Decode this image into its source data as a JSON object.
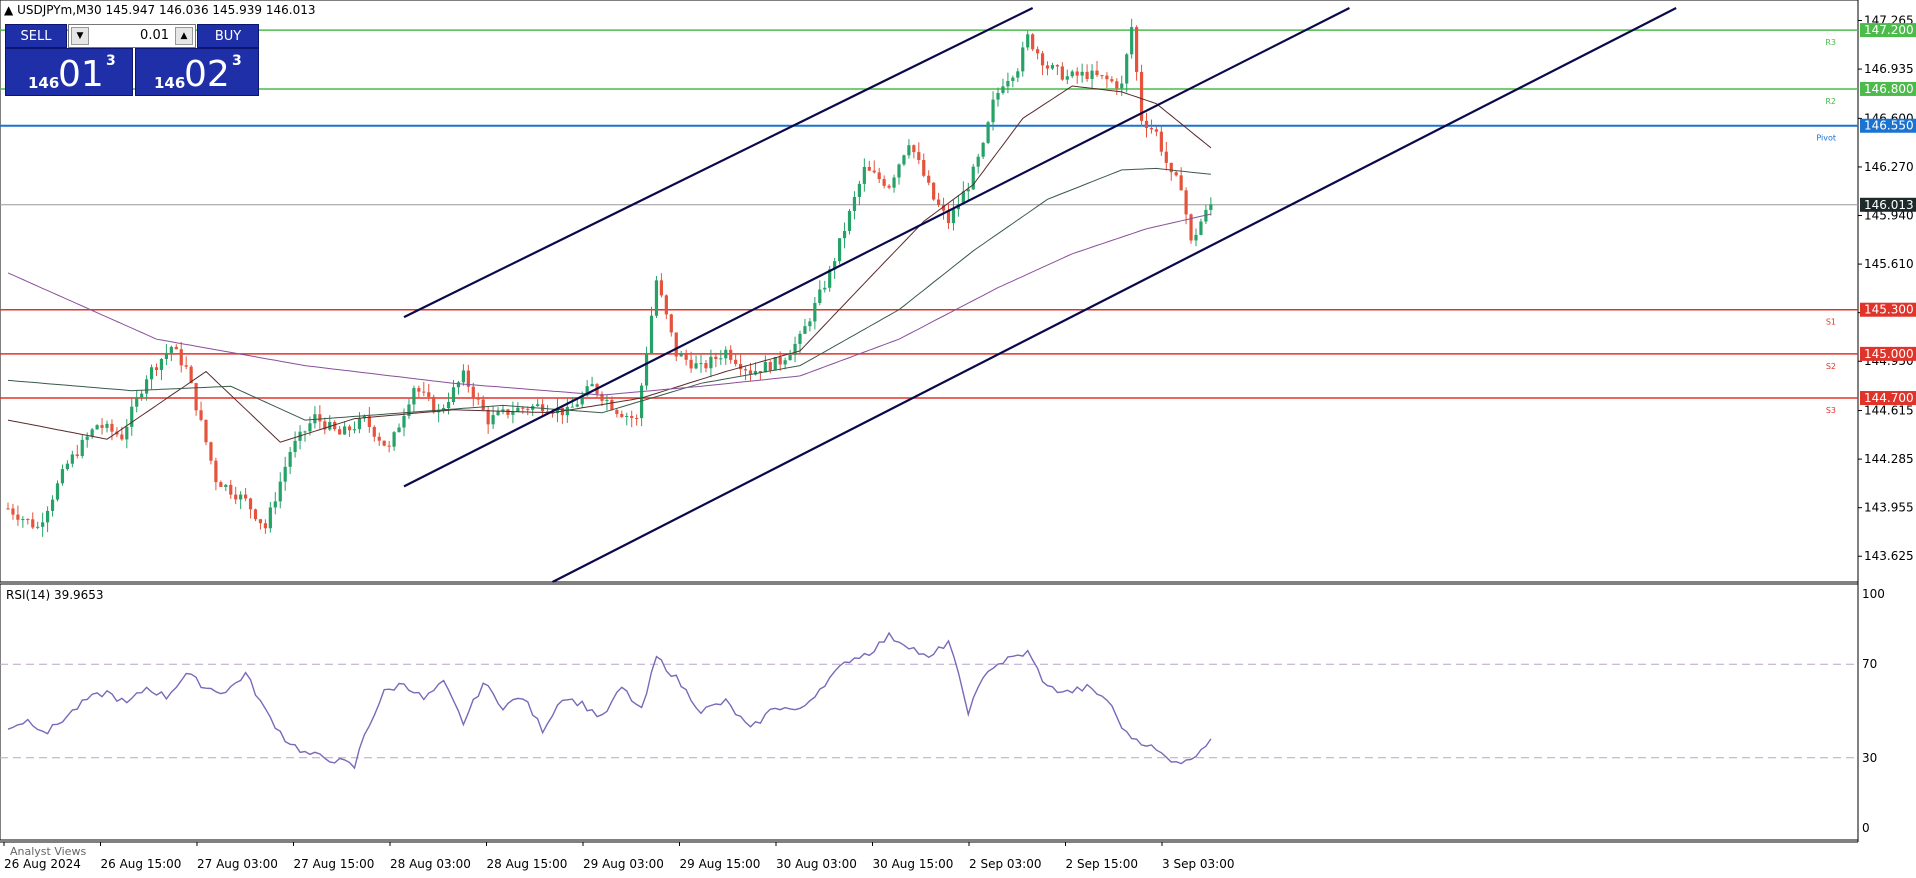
{
  "header": {
    "symbol": "USDJPYm,M30",
    "o": "145.947",
    "h": "146.036",
    "l": "145.939",
    "c": "146.013"
  },
  "trade_panel": {
    "sell_label": "SELL",
    "buy_label": "BUY",
    "lot_value": "0.01",
    "sell_quote": {
      "big": "146",
      "main": "01",
      "sup": "3"
    },
    "buy_quote": {
      "big": "146",
      "main": "02",
      "sup": "3"
    }
  },
  "colors": {
    "bull": "#26a269",
    "bear": "#e5533d",
    "support": "#e0332a",
    "resistance": "#4cbb4c",
    "pivot": "#1a73d1",
    "channel": "#0a0a4a",
    "rsi": "#7b68b8"
  },
  "chart_data": [
    {
      "type": "candlestick",
      "ylim": [
        143.45,
        147.35
      ],
      "price_ticks": [
        "147.265",
        "146.935",
        "146.600",
        "146.270",
        "145.940",
        "145.610",
        "145.280",
        "144.950",
        "144.615",
        "144.285",
        "143.955",
        "143.625"
      ],
      "x_tick_labels": [
        "26 Aug 2024",
        "26 Aug 15:00",
        "27 Aug 03:00",
        "27 Aug 15:00",
        "28 Aug 03:00",
        "28 Aug 15:00",
        "29 Aug 03:00",
        "29 Aug 15:00",
        "30 Aug 03:00",
        "30 Aug 15:00",
        "2 Sep 03:00",
        "2 Sep 15:00",
        "3 Sep 03:00"
      ],
      "current_price": "146.013",
      "levels": [
        {
          "name": "R3",
          "price": 147.2,
          "label": "147.200",
          "kind": "resistance"
        },
        {
          "name": "R2",
          "price": 146.8,
          "label": "146.800",
          "kind": "resistance"
        },
        {
          "name": "Pivot",
          "price": 146.55,
          "label": "146.550",
          "kind": "pivot"
        },
        {
          "name": "S1",
          "price": 145.3,
          "label": "145.300",
          "kind": "support"
        },
        {
          "name": "S2",
          "price": 145.0,
          "label": "145.000",
          "kind": "support"
        },
        {
          "name": "S3",
          "price": 144.7,
          "label": "144.700",
          "kind": "support"
        }
      ],
      "close_path": [
        [
          0,
          143.95
        ],
        [
          6,
          143.82
        ],
        [
          12,
          144.25
        ],
        [
          18,
          144.52
        ],
        [
          23,
          144.44
        ],
        [
          28,
          144.85
        ],
        [
          33,
          145.05
        ],
        [
          36,
          144.9
        ],
        [
          42,
          144.15
        ],
        [
          48,
          144.0
        ],
        [
          52,
          143.82
        ],
        [
          57,
          144.34
        ],
        [
          62,
          144.57
        ],
        [
          67,
          144.45
        ],
        [
          72,
          144.55
        ],
        [
          77,
          144.35
        ],
        [
          82,
          144.78
        ],
        [
          87,
          144.6
        ],
        [
          92,
          144.85
        ],
        [
          97,
          144.55
        ],
        [
          102,
          144.62
        ],
        [
          108,
          144.65
        ],
        [
          113,
          144.6
        ],
        [
          118,
          144.78
        ],
        [
          123,
          144.62
        ],
        [
          127,
          144.55
        ],
        [
          131,
          145.5
        ],
        [
          135,
          145.0
        ],
        [
          140,
          144.9
        ],
        [
          145,
          145.02
        ],
        [
          150,
          144.88
        ],
        [
          156,
          144.95
        ],
        [
          160,
          145.1
        ],
        [
          166,
          145.55
        ],
        [
          170,
          145.95
        ],
        [
          173,
          146.25
        ],
        [
          178,
          146.15
        ],
        [
          182,
          146.45
        ],
        [
          187,
          146.05
        ],
        [
          190,
          145.9
        ],
        [
          194,
          146.15
        ],
        [
          197,
          146.4
        ],
        [
          199,
          146.7
        ],
        [
          201,
          146.85
        ],
        [
          204,
          146.95
        ],
        [
          206,
          147.15
        ],
        [
          210,
          146.95
        ],
        [
          214,
          146.88
        ],
        [
          218,
          146.9
        ],
        [
          222,
          146.86
        ],
        [
          225,
          146.82
        ],
        [
          227,
          147.22
        ],
        [
          229,
          146.6
        ],
        [
          232,
          146.5
        ],
        [
          235,
          146.2
        ],
        [
          237,
          146.15
        ],
        [
          239,
          145.75
        ],
        [
          241,
          145.9
        ],
        [
          243,
          146.013
        ]
      ],
      "ma_fast": [
        [
          0,
          144.55
        ],
        [
          20,
          144.42
        ],
        [
          40,
          144.88
        ],
        [
          55,
          144.4
        ],
        [
          70,
          144.56
        ],
        [
          90,
          144.62
        ],
        [
          110,
          144.6
        ],
        [
          128,
          144.7
        ],
        [
          145,
          144.88
        ],
        [
          160,
          145.02
        ],
        [
          175,
          145.55
        ],
        [
          185,
          145.9
        ],
        [
          195,
          146.15
        ],
        [
          205,
          146.6
        ],
        [
          215,
          146.82
        ],
        [
          225,
          146.78
        ],
        [
          232,
          146.7
        ],
        [
          243,
          146.4
        ]
      ],
      "ma_mid": [
        [
          0,
          144.82
        ],
        [
          25,
          144.75
        ],
        [
          45,
          144.78
        ],
        [
          60,
          144.55
        ],
        [
          80,
          144.6
        ],
        [
          100,
          144.65
        ],
        [
          120,
          144.6
        ],
        [
          140,
          144.8
        ],
        [
          160,
          144.92
        ],
        [
          180,
          145.3
        ],
        [
          195,
          145.7
        ],
        [
          210,
          146.05
        ],
        [
          225,
          146.25
        ],
        [
          232,
          146.26
        ],
        [
          243,
          146.22
        ]
      ],
      "ma_slow": [
        [
          0,
          145.55
        ],
        [
          30,
          145.1
        ],
        [
          60,
          144.92
        ],
        [
          90,
          144.8
        ],
        [
          120,
          144.72
        ],
        [
          140,
          144.78
        ],
        [
          160,
          144.85
        ],
        [
          180,
          145.1
        ],
        [
          200,
          145.45
        ],
        [
          215,
          145.68
        ],
        [
          230,
          145.85
        ],
        [
          243,
          145.95
        ]
      ],
      "channel_lines": [
        [
          [
            80,
            145.25
          ],
          [
            207,
            147.35
          ]
        ],
        [
          [
            80,
            144.1
          ],
          [
            271,
            147.35
          ]
        ],
        [
          [
            110,
            143.45
          ],
          [
            337,
            147.35
          ]
        ]
      ]
    },
    {
      "type": "line",
      "name": "RSI(14) 39.9653",
      "ylim": [
        0,
        100
      ],
      "y_ticks": [
        "100",
        "70",
        "30",
        "0"
      ],
      "levels": [
        70,
        30
      ],
      "values": [
        [
          0,
          43
        ],
        [
          4,
          46
        ],
        [
          8,
          41
        ],
        [
          12,
          48
        ],
        [
          16,
          55
        ],
        [
          20,
          58
        ],
        [
          24,
          53
        ],
        [
          28,
          60
        ],
        [
          32,
          56
        ],
        [
          36,
          66
        ],
        [
          40,
          60
        ],
        [
          44,
          58
        ],
        [
          48,
          66
        ],
        [
          52,
          50
        ],
        [
          56,
          38
        ],
        [
          60,
          32
        ],
        [
          64,
          30
        ],
        [
          68,
          28
        ],
        [
          70,
          26
        ],
        [
          72,
          40
        ],
        [
          76,
          58
        ],
        [
          80,
          62
        ],
        [
          84,
          55
        ],
        [
          88,
          62
        ],
        [
          92,
          45
        ],
        [
          96,
          62
        ],
        [
          100,
          52
        ],
        [
          104,
          56
        ],
        [
          108,
          42
        ],
        [
          112,
          56
        ],
        [
          116,
          53
        ],
        [
          120,
          47
        ],
        [
          124,
          60
        ],
        [
          128,
          50
        ],
        [
          131,
          73
        ],
        [
          135,
          64
        ],
        [
          140,
          50
        ],
        [
          145,
          54
        ],
        [
          150,
          42
        ],
        [
          155,
          52
        ],
        [
          160,
          50
        ],
        [
          165,
          62
        ],
        [
          170,
          72
        ],
        [
          174,
          75
        ],
        [
          178,
          82
        ],
        [
          182,
          78
        ],
        [
          186,
          72
        ],
        [
          190,
          80
        ],
        [
          194,
          50
        ],
        [
          198,
          68
        ],
        [
          202,
          72
        ],
        [
          206,
          75
        ],
        [
          210,
          60
        ],
        [
          214,
          58
        ],
        [
          218,
          60
        ],
        [
          222,
          55
        ],
        [
          226,
          40
        ],
        [
          230,
          36
        ],
        [
          234,
          30
        ],
        [
          238,
          28
        ],
        [
          240,
          32
        ],
        [
          243,
          38
        ]
      ]
    }
  ],
  "rsi_label": "RSI(14) 39.9653",
  "analyst_label": "Analyst Views"
}
